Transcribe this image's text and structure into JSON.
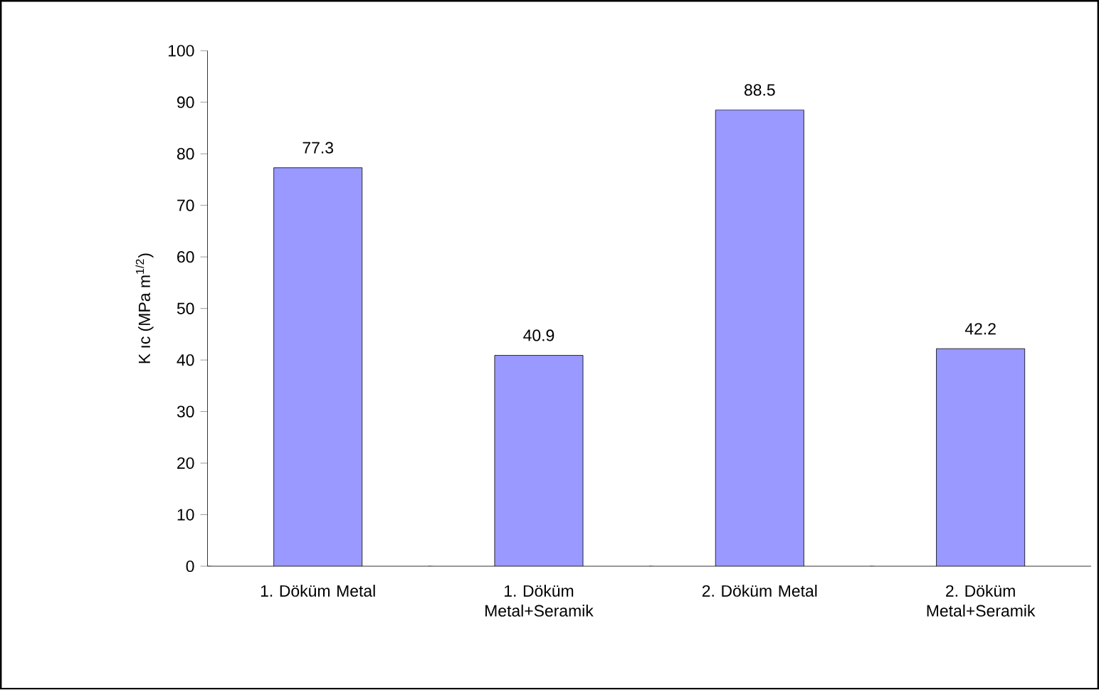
{
  "chart_data": {
    "type": "bar",
    "ylabel": "K ıc (MPa m$^{1/2}$)",
    "categories": [
      "1. Döküm Metal",
      "1. Döküm Metal+Seramik",
      "2. Döküm Metal",
      "2. Döküm Metal+Seramik"
    ],
    "values": [
      77.3,
      40.9,
      88.5,
      42.2
    ],
    "color": "#9999ff",
    "data_labels": true,
    "ylim": [
      0,
      100
    ],
    "yticks": [
      0,
      10,
      20,
      30,
      40,
      50,
      60,
      70,
      80,
      90,
      100
    ],
    "grid": false
  }
}
